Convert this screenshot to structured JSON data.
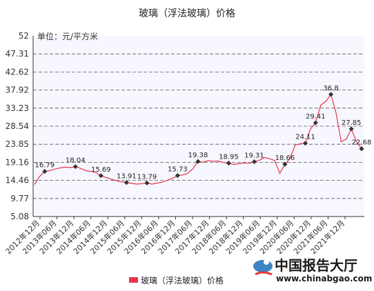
{
  "chart_data": {
    "type": "line",
    "title": "玻璃（浮法玻璃）价格",
    "unit_label": "单位：元/平方米",
    "ylim": [
      5.08,
      52
    ],
    "y_ticks": [
      "52",
      "47.31",
      "42.62",
      "37.92",
      "33.23",
      "28.54",
      "23.85",
      "19.16",
      "14.46",
      "9.77",
      "5.08"
    ],
    "x_ticks": [
      "2012年12月",
      "2013年06月",
      "2013年12月",
      "2014年06月",
      "2014年12月",
      "2015年06月",
      "2015年12月",
      "2016年06月",
      "2016年12月",
      "2017年06月",
      "2017年12月",
      "2018年06月",
      "2018年12月",
      "2019年06月",
      "2019年12月",
      "2020年06月",
      "2020年12月",
      "2021年06月",
      "2021年12月"
    ],
    "grid": true,
    "legend_position": "bottom",
    "series": [
      {
        "name": "玻璃（浮法玻璃）价格",
        "color": "#e8344e",
        "values": [
          13.4,
          15.5,
          16.79,
          17.0,
          17.4,
          17.7,
          17.9,
          17.8,
          18.04,
          17.6,
          17.0,
          16.8,
          16.5,
          15.69,
          15.2,
          14.8,
          14.4,
          14.1,
          13.91,
          13.7,
          13.5,
          13.6,
          13.79,
          13.5,
          13.79,
          14.0,
          14.5,
          15.0,
          15.73,
          15.9,
          16.3,
          17.5,
          19.38,
          19.2,
          19.6,
          19.4,
          19.5,
          19.1,
          18.95,
          18.6,
          18.8,
          19.0,
          18.9,
          19.31,
          19.7,
          20.4,
          20.1,
          19.6,
          16.3,
          18.66,
          20.2,
          23.6,
          24.0,
          24.11,
          27.8,
          29.41,
          34.0,
          35.0,
          36.8,
          32.0,
          24.5,
          25.2,
          27.85,
          24.5,
          22.68
        ]
      }
    ],
    "labeled_points": [
      {
        "index": 2,
        "value": 16.79,
        "label": "16.79"
      },
      {
        "index": 8,
        "value": 18.04,
        "label": "18.04"
      },
      {
        "index": 13,
        "value": 15.69,
        "label": "15.69"
      },
      {
        "index": 18,
        "value": 13.91,
        "label": "13.91"
      },
      {
        "index": 22,
        "value": 13.79,
        "label": "13.79"
      },
      {
        "index": 28,
        "value": 15.73,
        "label": "15.73"
      },
      {
        "index": 32,
        "value": 19.38,
        "label": "19.38"
      },
      {
        "index": 38,
        "value": 18.95,
        "label": "18.95"
      },
      {
        "index": 43,
        "value": 19.31,
        "label": "19.31"
      },
      {
        "index": 49,
        "value": 18.66,
        "label": "18.66"
      },
      {
        "index": 53,
        "value": 24.11,
        "label": "24.11"
      },
      {
        "index": 55,
        "value": 29.41,
        "label": "29.41"
      },
      {
        "index": 58,
        "value": 36.8,
        "label": "36.8"
      },
      {
        "index": 62,
        "value": 27.85,
        "label": "27.85"
      },
      {
        "index": 64,
        "value": 22.68,
        "label": "22.68"
      }
    ]
  },
  "watermark": {
    "name": "中国报告大厅",
    "url": "www.chinabgao.com"
  }
}
